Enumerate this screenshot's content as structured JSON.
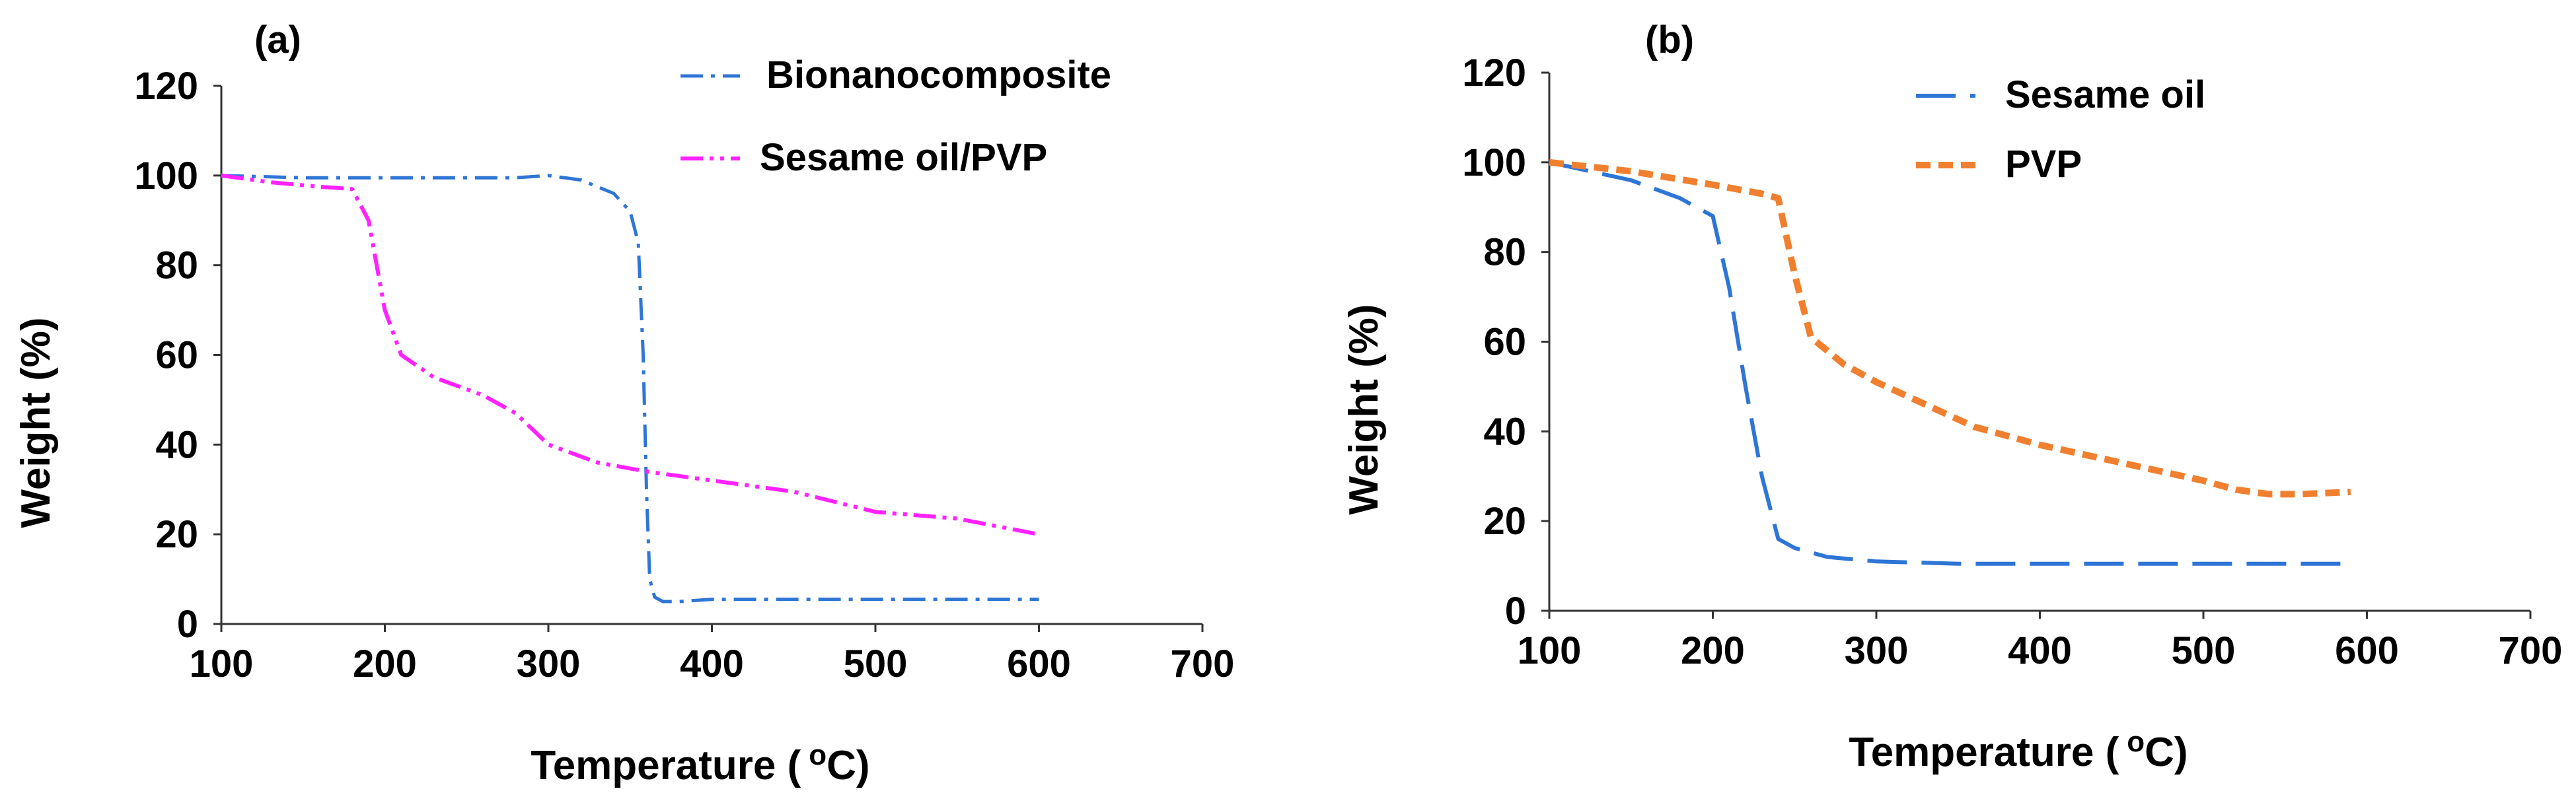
{
  "chart_data": [
    {
      "type": "line",
      "panel_label": "(a)",
      "title": "",
      "xlabel": "Temperature (",
      "xlabel_super": "o",
      "xlabel_unit": "C)",
      "ylabel": "Weight (%)",
      "xlim": [
        100,
        700
      ],
      "ylim": [
        0,
        120
      ],
      "xticks": [
        100,
        200,
        300,
        400,
        500,
        600,
        700
      ],
      "yticks": [
        0,
        20,
        40,
        60,
        80,
        100,
        120
      ],
      "legend_position": "top-right",
      "series": [
        {
          "name": "Bionanocomposite",
          "color": "#2E75D6",
          "dash": "dash-dot",
          "x": [
            100,
            150,
            200,
            250,
            280,
            300,
            320,
            340,
            350,
            355,
            358,
            360,
            362,
            365,
            370,
            380,
            400,
            450,
            500,
            550,
            600
          ],
          "y": [
            100,
            99.5,
            99.5,
            99.5,
            99.5,
            100,
            99,
            96,
            92,
            85,
            60,
            30,
            10,
            6,
            5,
            5,
            5.5,
            5.5,
            5.5,
            5.5,
            5.5
          ]
        },
        {
          "name": "Sesame oil/PVP",
          "color": "#FF22FF",
          "dash": "dash-dot-dot",
          "x": [
            100,
            130,
            160,
            180,
            190,
            200,
            210,
            230,
            260,
            280,
            300,
            330,
            360,
            400,
            450,
            500,
            550,
            600
          ],
          "y": [
            100,
            98.5,
            97.5,
            97,
            90,
            70,
            60,
            55,
            51,
            47,
            40,
            36,
            34,
            32,
            29.5,
            25,
            23.5,
            20
          ]
        }
      ]
    },
    {
      "type": "line",
      "panel_label": "(b)",
      "title": "",
      "xlabel": "Temperature (",
      "xlabel_super": "o",
      "xlabel_unit": "C)",
      "ylabel": "Weight (%)",
      "xlim": [
        100,
        700
      ],
      "ylim": [
        0,
        120
      ],
      "xticks": [
        100,
        200,
        300,
        400,
        500,
        600,
        700
      ],
      "yticks": [
        0,
        20,
        40,
        60,
        80,
        100,
        120
      ],
      "legend_position": "top-center",
      "series": [
        {
          "name": "Sesame oil",
          "color": "#2E75D6",
          "dash": "long-dash",
          "x": [
            100,
            150,
            180,
            190,
            200,
            210,
            220,
            230,
            240,
            250,
            270,
            300,
            350,
            400,
            500,
            590
          ],
          "y": [
            100,
            96,
            92,
            90,
            88,
            72,
            50,
            30,
            16,
            14,
            12,
            11,
            10.5,
            10.5,
            10.5,
            10.5
          ],
          "color_name": "blue"
        },
        {
          "name": "PVP",
          "color": "#F08030",
          "dash": "short-dash",
          "x": [
            100,
            150,
            200,
            230,
            240,
            250,
            260,
            280,
            300,
            330,
            360,
            400,
            450,
            500,
            520,
            540,
            560,
            590
          ],
          "y": [
            100,
            98,
            95,
            93,
            92,
            75,
            61,
            55,
            51,
            46,
            41,
            37,
            33,
            29,
            27,
            26,
            26,
            26.5
          ]
        }
      ]
    }
  ]
}
